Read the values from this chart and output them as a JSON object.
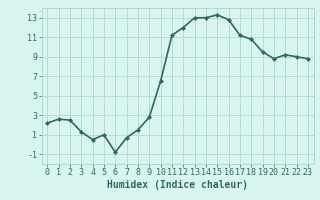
{
  "x": [
    0,
    1,
    2,
    3,
    4,
    5,
    6,
    7,
    8,
    9,
    10,
    11,
    12,
    13,
    14,
    15,
    16,
    17,
    18,
    19,
    20,
    21,
    22,
    23
  ],
  "y": [
    2.2,
    2.6,
    2.5,
    1.3,
    0.5,
    1.0,
    -0.8,
    0.7,
    1.5,
    2.8,
    6.5,
    11.2,
    12.0,
    13.0,
    13.0,
    13.3,
    12.8,
    11.2,
    10.8,
    9.5,
    8.8,
    9.2,
    9.0,
    8.8
  ],
  "line_color": "#2e6b5e",
  "marker": "D",
  "marker_size": 2,
  "bg_color": "#d8f5f0",
  "grid_color": "#b0d8ce",
  "xlabel": "Humidex (Indice chaleur)",
  "xlim": [
    -0.5,
    23.5
  ],
  "ylim": [
    -2,
    14
  ],
  "yticks": [
    -1,
    1,
    3,
    5,
    7,
    9,
    11,
    13
  ],
  "xlabel_fontsize": 7,
  "tick_fontsize": 6,
  "line_width": 1.2
}
